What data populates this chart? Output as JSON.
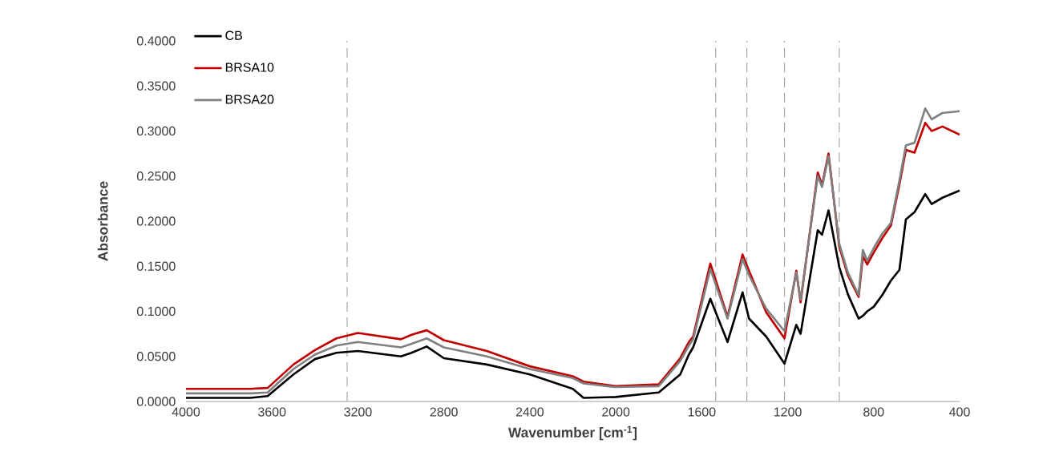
{
  "chart_data": {
    "type": "line",
    "xlabel": "Wavenumber [cm$^{-1}$]",
    "ylabel": "Absorbance",
    "x": [
      4000,
      3700,
      3620,
      3500,
      3400,
      3300,
      3200,
      3000,
      2950,
      2880,
      2800,
      2600,
      2400,
      2200,
      2150,
      2000,
      1800,
      1700,
      1660,
      1640,
      1560,
      1480,
      1410,
      1380,
      1300,
      1215,
      1160,
      1140,
      1060,
      1040,
      1010,
      960,
      920,
      870,
      850,
      830,
      800,
      760,
      720,
      680,
      650,
      610,
      560,
      530,
      480,
      400
    ],
    "series": [
      {
        "name": "CB",
        "color": "#000000",
        "values": [
          0.004,
          0.004,
          0.006,
          0.03,
          0.047,
          0.054,
          0.056,
          0.05,
          0.054,
          0.061,
          0.048,
          0.041,
          0.03,
          0.014,
          0.004,
          0.005,
          0.01,
          0.03,
          0.052,
          0.06,
          0.114,
          0.066,
          0.121,
          0.092,
          0.072,
          0.042,
          0.085,
          0.075,
          0.19,
          0.185,
          0.212,
          0.149,
          0.119,
          0.092,
          0.095,
          0.1,
          0.105,
          0.118,
          0.134,
          0.146,
          0.202,
          0.21,
          0.23,
          0.219,
          0.226,
          0.234
        ]
      },
      {
        "name": "BRSA10",
        "color": "#c00000",
        "values": [
          0.014,
          0.014,
          0.015,
          0.041,
          0.057,
          0.07,
          0.076,
          0.069,
          0.074,
          0.079,
          0.068,
          0.056,
          0.039,
          0.028,
          0.022,
          0.017,
          0.019,
          0.048,
          0.066,
          0.072,
          0.153,
          0.094,
          0.163,
          0.145,
          0.099,
          0.07,
          0.145,
          0.11,
          0.254,
          0.24,
          0.275,
          0.172,
          0.14,
          0.116,
          0.161,
          0.152,
          0.165,
          0.181,
          0.195,
          0.241,
          0.279,
          0.276,
          0.309,
          0.3,
          0.305,
          0.296
        ]
      },
      {
        "name": "BRSA20",
        "color": "#808080",
        "values": [
          0.009,
          0.009,
          0.01,
          0.036,
          0.052,
          0.062,
          0.066,
          0.06,
          0.064,
          0.07,
          0.06,
          0.05,
          0.036,
          0.026,
          0.02,
          0.016,
          0.017,
          0.045,
          0.062,
          0.069,
          0.147,
          0.092,
          0.158,
          0.14,
          0.103,
          0.078,
          0.143,
          0.113,
          0.25,
          0.238,
          0.272,
          0.175,
          0.143,
          0.118,
          0.168,
          0.156,
          0.17,
          0.186,
          0.198,
          0.245,
          0.284,
          0.287,
          0.325,
          0.313,
          0.32,
          0.322
        ]
      }
    ],
    "xlim": [
      4000,
      400
    ],
    "xticks": [
      4000,
      3600,
      3200,
      2800,
      2400,
      2000,
      1600,
      1200,
      800,
      400
    ],
    "ylim": [
      0,
      0.4
    ],
    "yticks": [
      {
        "value": 0,
        "label": "0.0000"
      },
      {
        "value": 0.05,
        "label": "0.0500"
      },
      {
        "value": 0.1,
        "label": "0.1000"
      },
      {
        "value": 0.15,
        "label": "0.1500"
      },
      {
        "value": 0.2,
        "label": "0.2000"
      },
      {
        "value": 0.25,
        "label": "0.2500"
      },
      {
        "value": 0.3,
        "label": "0.3000"
      },
      {
        "value": 0.35,
        "label": "0.3500"
      },
      {
        "value": 0.4,
        "label": "0.4000"
      }
    ],
    "ref_lines": [
      {
        "axis": "x",
        "value": 3250,
        "color": "#a6a6a6",
        "line_style": "dashed"
      },
      {
        "axis": "x",
        "value": 1535,
        "color": "#a6a6a6",
        "line_style": "dashed"
      },
      {
        "axis": "x",
        "value": 1390,
        "color": "#a6a6a6",
        "line_style": "dashed"
      },
      {
        "axis": "x",
        "value": 1215,
        "color": "#a6a6a6",
        "line_style": "dashed"
      },
      {
        "axis": "x",
        "value": 960,
        "color": "#a6a6a6",
        "line_style": "dashed"
      }
    ],
    "grid": false,
    "legend": "top left",
    "marker": "none",
    "line_style": "solid"
  }
}
